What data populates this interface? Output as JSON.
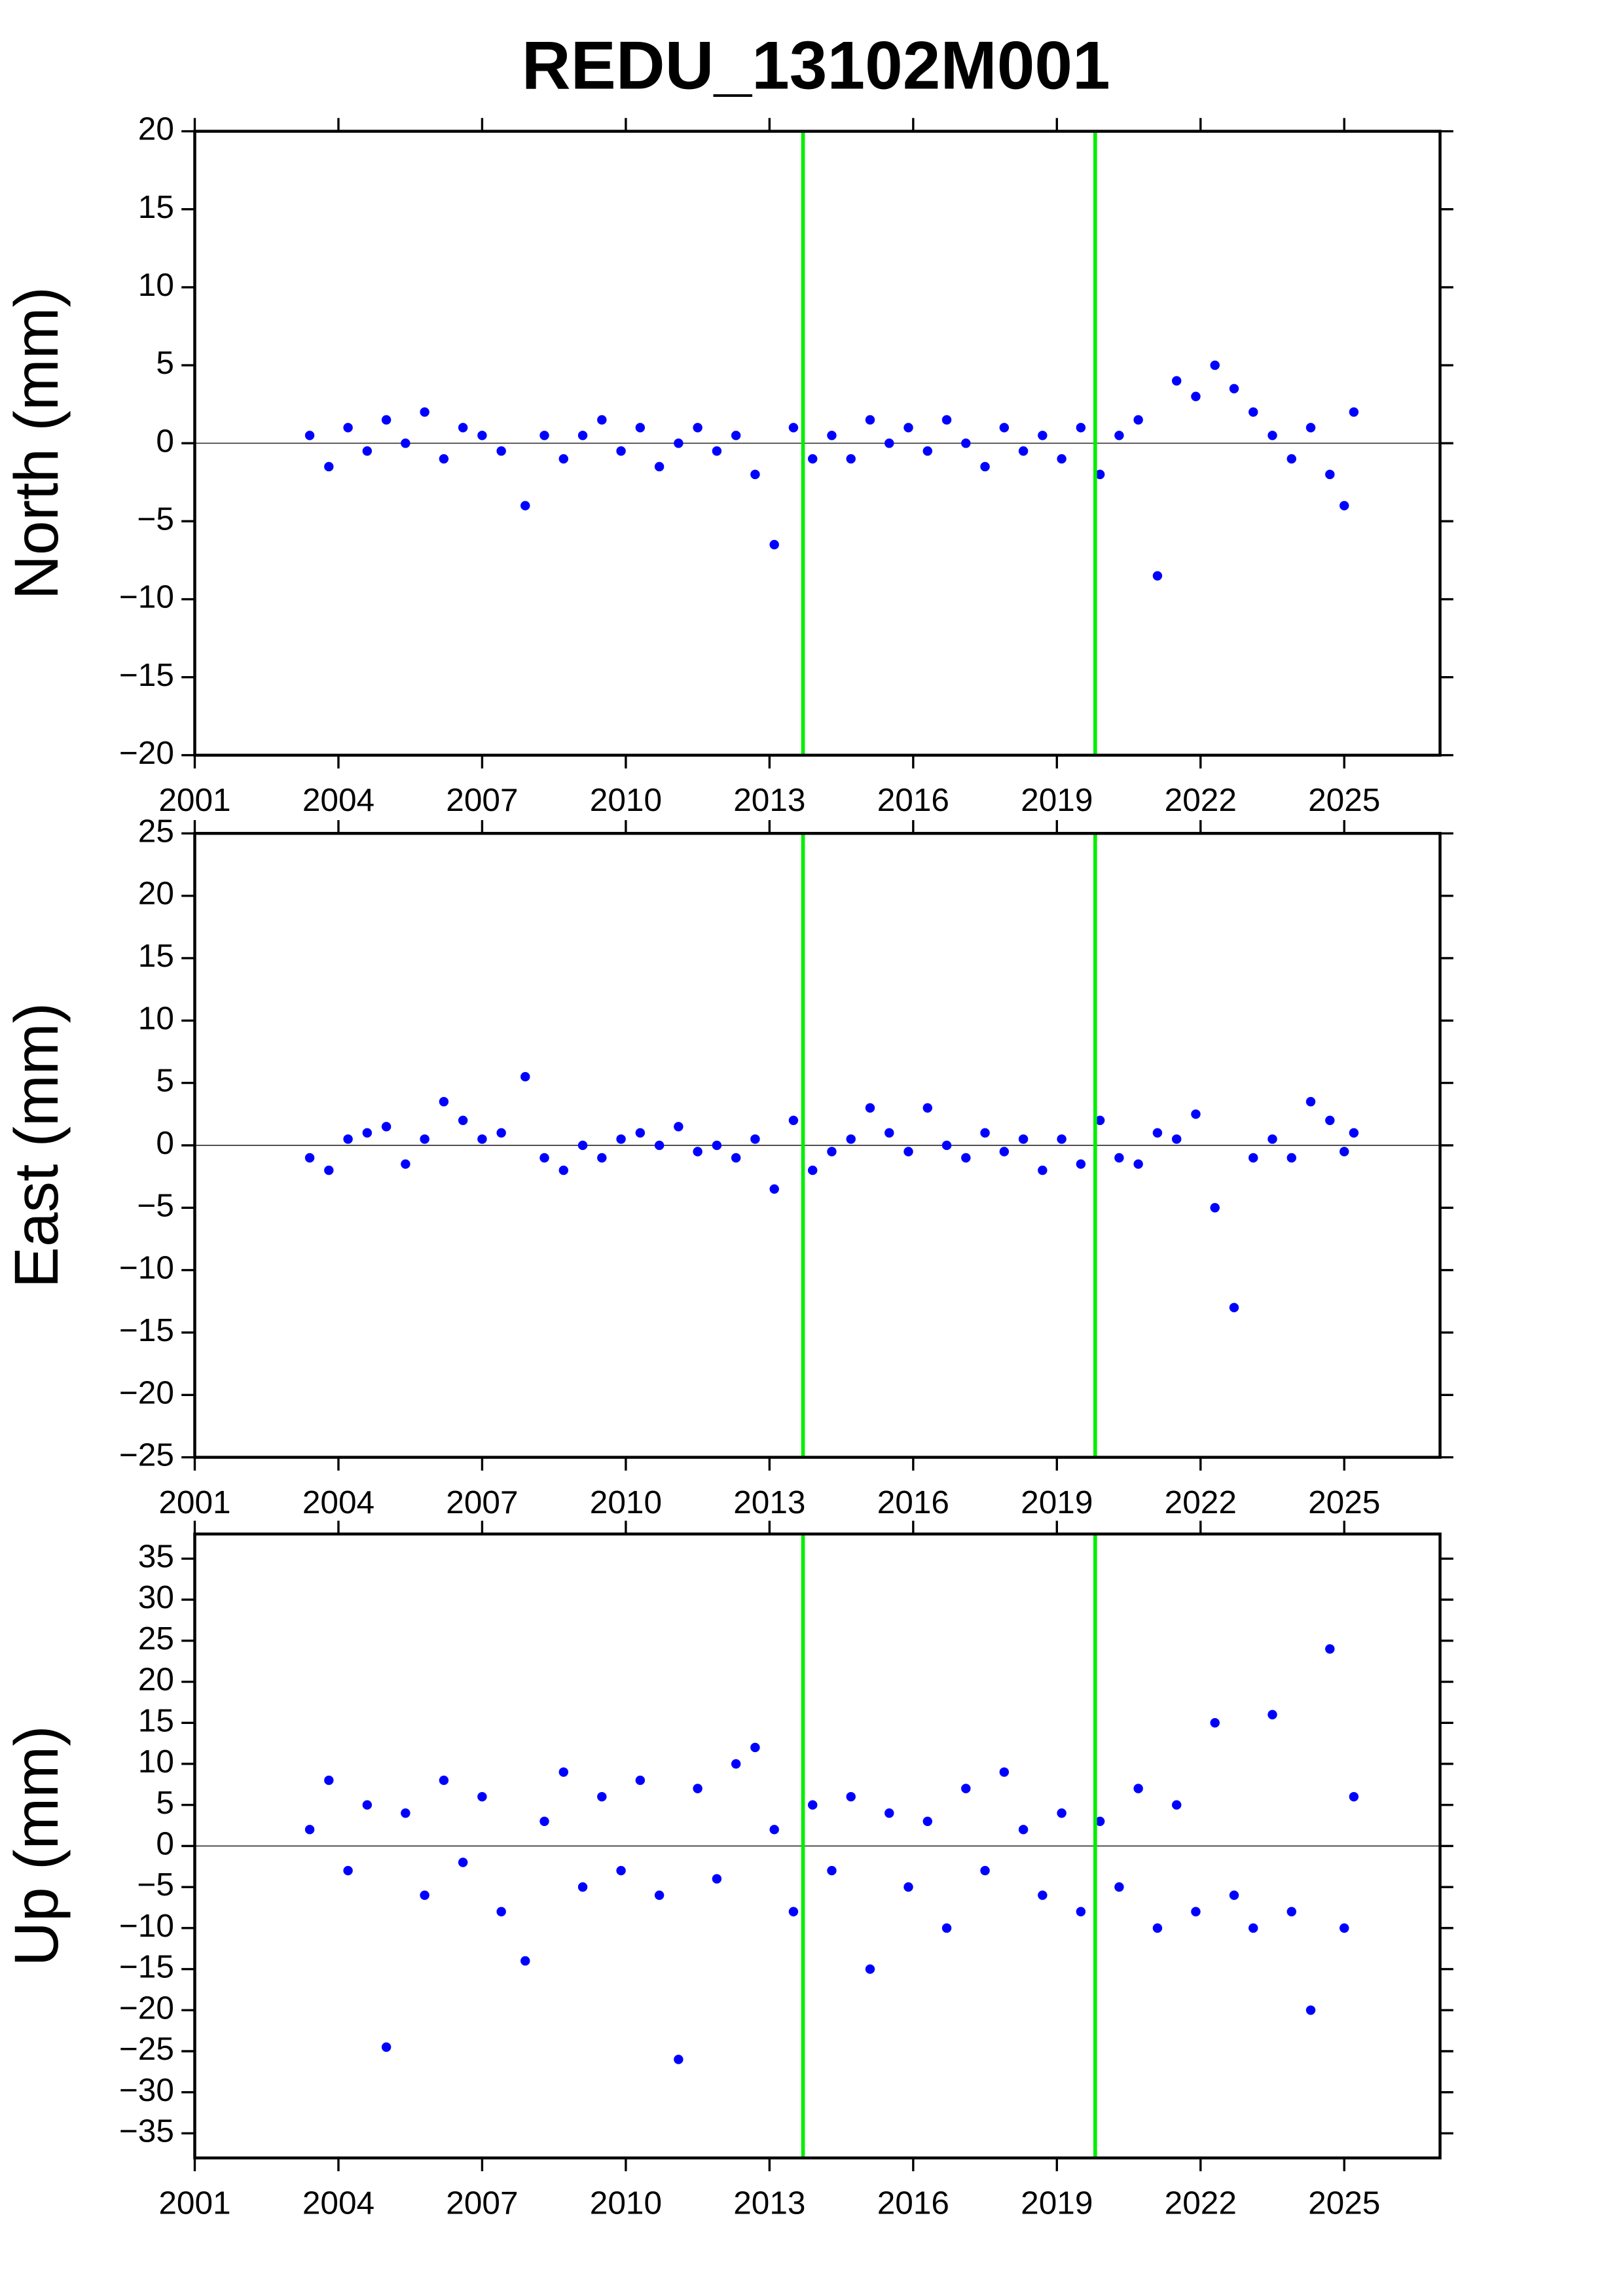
{
  "title": "REDU_13102M001",
  "chart_data": [
    {
      "type": "scatter",
      "ylabel": "North (mm)",
      "color": "#0000ff",
      "xlim": [
        2001,
        2027
      ],
      "xticks": [
        2001,
        2004,
        2007,
        2010,
        2013,
        2016,
        2019,
        2022,
        2025
      ],
      "ylim": [
        -20,
        20
      ],
      "yticks": [
        {
          "value": -20,
          "label": "−20"
        },
        {
          "value": -15,
          "label": "−15"
        },
        {
          "value": -10,
          "label": "−10"
        },
        {
          "value": -5,
          "label": "−5"
        },
        0,
        5,
        10,
        15,
        20
      ],
      "hline": 0,
      "vlines": [
        2013.7,
        2019.8
      ],
      "vline_color": "#00ee00",
      "x": [
        2003.4,
        2003.8,
        2004.2,
        2004.6,
        2005.0,
        2005.4,
        2005.8,
        2006.2,
        2006.6,
        2007.0,
        2007.4,
        2007.9,
        2008.3,
        2008.7,
        2009.1,
        2009.5,
        2009.9,
        2010.3,
        2010.7,
        2011.1,
        2011.5,
        2011.9,
        2012.3,
        2012.7,
        2013.1,
        2013.5,
        2013.9,
        2014.3,
        2014.7,
        2015.1,
        2015.5,
        2015.9,
        2016.3,
        2016.7,
        2017.1,
        2017.5,
        2017.9,
        2018.3,
        2018.7,
        2019.1,
        2019.5,
        2019.9,
        2020.3,
        2020.7,
        2021.1,
        2021.5,
        2021.9,
        2022.3,
        2022.7,
        2023.1,
        2023.5,
        2023.9,
        2024.3,
        2024.7,
        2025.0,
        2025.2
      ],
      "values": [
        0.5,
        -1.5,
        1.0,
        -0.5,
        1.5,
        0.0,
        2.0,
        -1.0,
        1.0,
        0.5,
        -0.5,
        -4.0,
        0.5,
        -1.0,
        0.5,
        1.5,
        -0.5,
        1.0,
        -1.5,
        0.0,
        1.0,
        -0.5,
        0.5,
        -2.0,
        -6.5,
        1.0,
        -1.0,
        0.5,
        -1.0,
        1.5,
        0.0,
        1.0,
        -0.5,
        1.5,
        0.0,
        -1.5,
        1.0,
        -0.5,
        0.5,
        -1.0,
        1.0,
        -2.0,
        0.5,
        1.5,
        -8.5,
        4.0,
        3.0,
        5.0,
        3.5,
        2.0,
        0.5,
        -1.0,
        1.0,
        -2.0,
        -4.0,
        2.0
      ]
    },
    {
      "type": "scatter",
      "ylabel": "East (mm)",
      "color": "#0000ff",
      "xlim": [
        2001,
        2027
      ],
      "xticks": [
        2001,
        2004,
        2007,
        2010,
        2013,
        2016,
        2019,
        2022,
        2025
      ],
      "ylim": [
        -25,
        25
      ],
      "yticks": [
        {
          "value": -25,
          "label": "−25"
        },
        {
          "value": -20,
          "label": "−20"
        },
        {
          "value": -15,
          "label": "−15"
        },
        {
          "value": -10,
          "label": "−10"
        },
        {
          "value": -5,
          "label": "−5"
        },
        0,
        5,
        10,
        15,
        20,
        25
      ],
      "hline": 0,
      "vlines": [
        2013.7,
        2019.8
      ],
      "vline_color": "#00ee00",
      "x": [
        2003.4,
        2003.8,
        2004.2,
        2004.6,
        2005.0,
        2005.4,
        2005.8,
        2006.2,
        2006.6,
        2007.0,
        2007.4,
        2007.9,
        2008.3,
        2008.7,
        2009.1,
        2009.5,
        2009.9,
        2010.3,
        2010.7,
        2011.1,
        2011.5,
        2011.9,
        2012.3,
        2012.7,
        2013.1,
        2013.5,
        2013.9,
        2014.3,
        2014.7,
        2015.1,
        2015.5,
        2015.9,
        2016.3,
        2016.7,
        2017.1,
        2017.5,
        2017.9,
        2018.3,
        2018.7,
        2019.1,
        2019.5,
        2019.9,
        2020.3,
        2020.7,
        2021.1,
        2021.5,
        2021.9,
        2022.3,
        2022.7,
        2023.1,
        2023.5,
        2023.9,
        2024.3,
        2024.7,
        2025.0,
        2025.2
      ],
      "values": [
        -1.0,
        -2.0,
        0.5,
        1.0,
        1.5,
        -1.5,
        0.5,
        3.5,
        2.0,
        0.5,
        1.0,
        5.5,
        -1.0,
        -2.0,
        0.0,
        -1.0,
        0.5,
        1.0,
        0.0,
        1.5,
        -0.5,
        0.0,
        -1.0,
        0.5,
        -3.5,
        2.0,
        -2.0,
        -0.5,
        0.5,
        3.0,
        1.0,
        -0.5,
        3.0,
        0.0,
        -1.0,
        1.0,
        -0.5,
        0.5,
        -2.0,
        0.5,
        -1.5,
        2.0,
        -1.0,
        -1.5,
        1.0,
        0.5,
        2.5,
        -5.0,
        -13.0,
        -1.0,
        0.5,
        -1.0,
        3.5,
        2.0,
        -0.5,
        1.0
      ]
    },
    {
      "type": "scatter",
      "ylabel": "Up (mm)",
      "color": "#0000ff",
      "xlim": [
        2001,
        2027
      ],
      "xticks": [
        2001,
        2004,
        2007,
        2010,
        2013,
        2016,
        2019,
        2022,
        2025
      ],
      "ylim": [
        -38,
        38
      ],
      "yticks": [
        {
          "value": -35,
          "label": "−35"
        },
        {
          "value": -30,
          "label": "−30"
        },
        {
          "value": -25,
          "label": "−25"
        },
        {
          "value": -20,
          "label": "−20"
        },
        {
          "value": -15,
          "label": "−15"
        },
        {
          "value": -10,
          "label": "−10"
        },
        {
          "value": -5,
          "label": "−5"
        },
        0,
        5,
        10,
        15,
        20,
        25,
        30,
        35
      ],
      "hline": 0,
      "vlines": [
        2013.7,
        2019.8
      ],
      "vline_color": "#00ee00",
      "x": [
        2003.4,
        2003.8,
        2004.2,
        2004.6,
        2005.0,
        2005.4,
        2005.8,
        2006.2,
        2006.6,
        2007.0,
        2007.4,
        2007.9,
        2008.3,
        2008.7,
        2009.1,
        2009.5,
        2009.9,
        2010.3,
        2010.7,
        2011.1,
        2011.5,
        2011.9,
        2012.3,
        2012.7,
        2013.1,
        2013.5,
        2013.9,
        2014.3,
        2014.7,
        2015.1,
        2015.5,
        2015.9,
        2016.3,
        2016.7,
        2017.1,
        2017.5,
        2017.9,
        2018.3,
        2018.7,
        2019.1,
        2019.5,
        2019.9,
        2020.3,
        2020.7,
        2021.1,
        2021.5,
        2021.9,
        2022.3,
        2022.7,
        2023.1,
        2023.5,
        2023.9,
        2024.3,
        2024.7,
        2025.0,
        2025.2
      ],
      "values": [
        2.0,
        8.0,
        -3.0,
        5.0,
        -24.5,
        4.0,
        -6.0,
        8.0,
        -2.0,
        6.0,
        -8.0,
        -14.0,
        3.0,
        9.0,
        -5.0,
        6.0,
        -3.0,
        8.0,
        -6.0,
        -26.0,
        7.0,
        -4.0,
        10.0,
        12.0,
        2.0,
        -8.0,
        5.0,
        -3.0,
        6.0,
        -15.0,
        4.0,
        -5.0,
        3.0,
        -10.0,
        7.0,
        -3.0,
        9.0,
        2.0,
        -6.0,
        4.0,
        -8.0,
        3.0,
        -5.0,
        7.0,
        -10.0,
        5.0,
        -8.0,
        15.0,
        -6.0,
        -10.0,
        16.0,
        -8.0,
        -20.0,
        24.0,
        -10.0,
        6.0
      ]
    }
  ]
}
